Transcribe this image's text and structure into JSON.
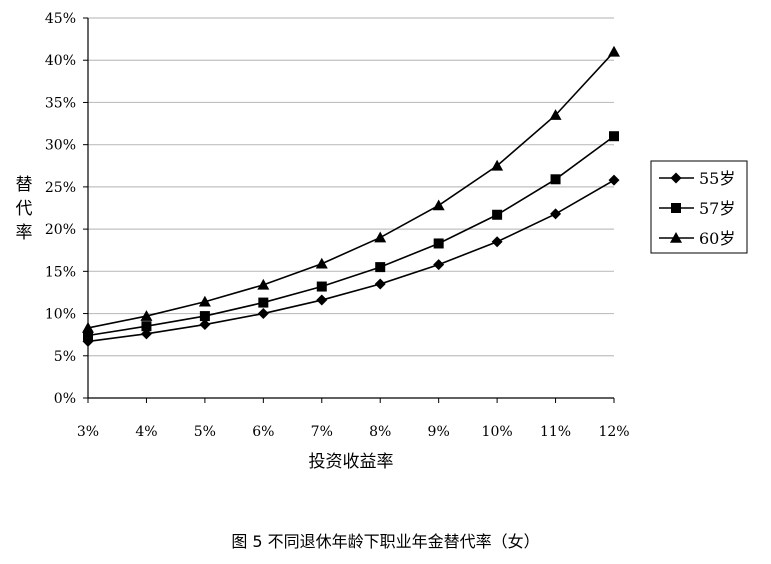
{
  "chart_data": {
    "type": "line",
    "x": [
      "3%",
      "4%",
      "5%",
      "6%",
      "7%",
      "8%",
      "9%",
      "10%",
      "11%",
      "12%"
    ],
    "xlabel": "投资收益率",
    "ylabel": "替代率",
    "ylim": [
      0,
      45
    ],
    "y_ticks": [
      "0%",
      "5%",
      "10%",
      "15%",
      "20%",
      "25%",
      "30%",
      "35%",
      "40%",
      "45%"
    ],
    "grid": "horizontal",
    "legend_position": "right",
    "series": [
      {
        "name": "55岁",
        "marker": "diamond",
        "values": [
          6.7,
          7.6,
          8.7,
          10.0,
          11.6,
          13.5,
          15.8,
          18.5,
          21.8,
          25.8
        ]
      },
      {
        "name": "57岁",
        "marker": "square",
        "values": [
          7.4,
          8.5,
          9.7,
          11.3,
          13.2,
          15.5,
          18.3,
          21.7,
          25.9,
          31.0
        ]
      },
      {
        "name": "60岁",
        "marker": "triangle",
        "values": [
          8.3,
          9.7,
          11.4,
          13.4,
          15.9,
          19.0,
          22.8,
          27.5,
          33.5,
          41.0
        ]
      }
    ],
    "caption": "图 5 不同退休年龄下职业年金替代率（女）"
  },
  "colors": {
    "line": "#000000",
    "grid": "#c0c0c0",
    "axis": "#000000"
  }
}
